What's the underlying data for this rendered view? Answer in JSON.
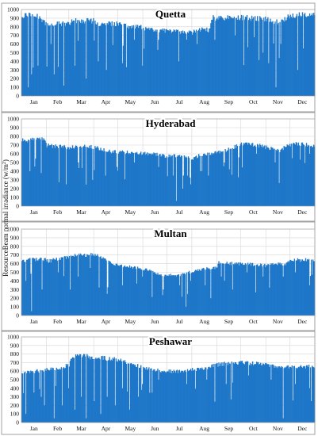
{
  "figure": {
    "ylabel": "ResourceBeam normal irradiance (w/m²)",
    "ylabel_main": "ResourceBeam normal irradiance (w/m",
    "ylabel_sup": "2",
    "ylabel_end": ")"
  },
  "chart_data": [
    {
      "type": "bar",
      "title": "Quetta",
      "categories": [
        "Jan",
        "Feb",
        "Mar",
        "Apr",
        "May",
        "Jun",
        "Jul",
        "Aug",
        "Sep",
        "Oct",
        "Nov",
        "Dec"
      ],
      "yticks": [
        0,
        100,
        200,
        300,
        400,
        500,
        600,
        700,
        800,
        900,
        1000
      ],
      "ylim": [
        0,
        1000
      ],
      "grid": true,
      "color": "#1f77c8",
      "envelope": [
        [
          0,
          960
        ],
        [
          15,
          990
        ],
        [
          28,
          880
        ],
        [
          31,
          870
        ],
        [
          59,
          860
        ],
        [
          62,
          900
        ],
        [
          90,
          900
        ],
        [
          95,
          850
        ],
        [
          120,
          870
        ],
        [
          125,
          840
        ],
        [
          150,
          820
        ],
        [
          160,
          790
        ],
        [
          181,
          780
        ],
        [
          190,
          770
        ],
        [
          212,
          760
        ],
        [
          220,
          800
        ],
        [
          233,
          790
        ],
        [
          236,
          940
        ],
        [
          243,
          930
        ],
        [
          273,
          940
        ],
        [
          290,
          930
        ],
        [
          304,
          920
        ],
        [
          320,
          880
        ],
        [
          334,
          960
        ],
        [
          349,
          980
        ],
        [
          365,
          970
        ]
      ],
      "dips": [
        [
          8,
          100
        ],
        [
          12,
          250
        ],
        [
          20,
          350
        ],
        [
          36,
          600
        ],
        [
          40,
          250
        ],
        [
          52,
          120
        ],
        [
          66,
          350
        ],
        [
          80,
          200
        ],
        [
          95,
          400
        ],
        [
          105,
          300
        ],
        [
          125,
          380
        ],
        [
          140,
          650
        ],
        [
          150,
          350
        ],
        [
          170,
          650
        ],
        [
          195,
          400
        ],
        [
          205,
          650
        ],
        [
          218,
          600
        ],
        [
          240,
          650
        ],
        [
          265,
          700
        ],
        [
          289,
          680
        ],
        [
          300,
          500
        ],
        [
          316,
          100
        ],
        [
          322,
          600
        ],
        [
          343,
          300
        ],
        [
          350,
          550
        ]
      ]
    },
    {
      "type": "bar",
      "title": "Hyderabad",
      "categories": [
        "Jan",
        "Feb",
        "Mar",
        "Apr",
        "May",
        "Jun",
        "Jul",
        "Aug",
        "Sep",
        "Oct",
        "Nov",
        "Dec"
      ],
      "yticks": [
        0,
        100,
        200,
        300,
        400,
        500,
        600,
        700,
        800,
        900,
        1000
      ],
      "ylim": [
        0,
        1000
      ],
      "grid": true,
      "color": "#1f77c8",
      "envelope": [
        [
          0,
          780
        ],
        [
          28,
          790
        ],
        [
          31,
          720
        ],
        [
          59,
          700
        ],
        [
          75,
          710
        ],
        [
          90,
          700
        ],
        [
          110,
          650
        ],
        [
          130,
          640
        ],
        [
          150,
          630
        ],
        [
          170,
          610
        ],
        [
          181,
          590
        ],
        [
          200,
          600
        ],
        [
          212,
          560
        ],
        [
          220,
          600
        ],
        [
          243,
          640
        ],
        [
          260,
          680
        ],
        [
          273,
          740
        ],
        [
          290,
          730
        ],
        [
          304,
          700
        ],
        [
          320,
          660
        ],
        [
          334,
          730
        ],
        [
          350,
          740
        ],
        [
          365,
          720
        ]
      ],
      "dips": [
        [
          10,
          400
        ],
        [
          24,
          380
        ],
        [
          55,
          250
        ],
        [
          70,
          500
        ],
        [
          88,
          300
        ],
        [
          104,
          350
        ],
        [
          118,
          450
        ],
        [
          140,
          500
        ],
        [
          170,
          450
        ],
        [
          188,
          350
        ],
        [
          192,
          60
        ],
        [
          200,
          200
        ],
        [
          206,
          350
        ],
        [
          210,
          250
        ],
        [
          222,
          400
        ],
        [
          232,
          350
        ],
        [
          252,
          500
        ],
        [
          270,
          560
        ],
        [
          292,
          600
        ],
        [
          315,
          500
        ],
        [
          336,
          550
        ],
        [
          358,
          600
        ]
      ]
    },
    {
      "type": "bar",
      "title": "Multan",
      "categories": [
        "Jan",
        "Feb",
        "Mar",
        "Apr",
        "May",
        "Jun",
        "Jul",
        "Aug",
        "Sep",
        "Oct",
        "Nov",
        "Dec"
      ],
      "yticks": [
        0,
        100,
        200,
        300,
        400,
        500,
        600,
        700,
        800,
        900,
        1000
      ],
      "ylim": [
        0,
        1000
      ],
      "grid": true,
      "color": "#1f77c8",
      "envelope": [
        [
          0,
          660
        ],
        [
          28,
          680
        ],
        [
          31,
          650
        ],
        [
          59,
          700
        ],
        [
          62,
          720
        ],
        [
          90,
          730
        ],
        [
          110,
          640
        ],
        [
          120,
          600
        ],
        [
          150,
          560
        ],
        [
          170,
          500
        ],
        [
          181,
          480
        ],
        [
          200,
          490
        ],
        [
          212,
          530
        ],
        [
          230,
          560
        ],
        [
          243,
          580
        ],
        [
          245,
          630
        ],
        [
          273,
          620
        ],
        [
          304,
          600
        ],
        [
          320,
          620
        ],
        [
          330,
          620
        ],
        [
          334,
          660
        ],
        [
          365,
          670
        ]
      ],
      "dips": [
        [
          5,
          400
        ],
        [
          12,
          50
        ],
        [
          25,
          300
        ],
        [
          45,
          500
        ],
        [
          60,
          300
        ],
        [
          70,
          450
        ],
        [
          85,
          550
        ],
        [
          106,
          250
        ],
        [
          125,
          350
        ],
        [
          150,
          450
        ],
        [
          176,
          300
        ],
        [
          196,
          350
        ],
        [
          204,
          100
        ],
        [
          210,
          400
        ],
        [
          228,
          350
        ],
        [
          248,
          450
        ],
        [
          262,
          300
        ],
        [
          280,
          500
        ],
        [
          300,
          450
        ],
        [
          325,
          450
        ],
        [
          340,
          500
        ],
        [
          358,
          350
        ]
      ]
    },
    {
      "type": "bar",
      "title": "Peshawar",
      "categories": [
        "Jan",
        "Feb",
        "Mar",
        "Apr",
        "May",
        "Jun",
        "Jul",
        "Aug",
        "Sep",
        "Oct",
        "Nov",
        "Dec"
      ],
      "yticks": [
        0,
        100,
        200,
        300,
        400,
        500,
        600,
        700,
        800,
        900,
        1000
      ],
      "ylim": [
        0,
        1000
      ],
      "grid": true,
      "color": "#1f77c8",
      "envelope": [
        [
          0,
          600
        ],
        [
          31,
          640
        ],
        [
          45,
          650
        ],
        [
          59,
          700
        ],
        [
          62,
          800
        ],
        [
          80,
          810
        ],
        [
          90,
          760
        ],
        [
          100,
          780
        ],
        [
          120,
          760
        ],
        [
          150,
          670
        ],
        [
          160,
          640
        ],
        [
          181,
          620
        ],
        [
          200,
          620
        ],
        [
          212,
          640
        ],
        [
          230,
          660
        ],
        [
          243,
          700
        ],
        [
          260,
          720
        ],
        [
          273,
          730
        ],
        [
          304,
          700
        ],
        [
          320,
          680
        ],
        [
          334,
          670
        ],
        [
          365,
          680
        ]
      ],
      "dips": [
        [
          5,
          100
        ],
        [
          15,
          350
        ],
        [
          28,
          200
        ],
        [
          40,
          50
        ],
        [
          50,
          200
        ],
        [
          58,
          400
        ],
        [
          66,
          150
        ],
        [
          74,
          300
        ],
        [
          80,
          50
        ],
        [
          90,
          250
        ],
        [
          98,
          100
        ],
        [
          106,
          300
        ],
        [
          116,
          200
        ],
        [
          125,
          400
        ],
        [
          134,
          150
        ],
        [
          150,
          450
        ],
        [
          170,
          500
        ],
        [
          205,
          450
        ],
        [
          230,
          500
        ],
        [
          254,
          450
        ],
        [
          282,
          550
        ],
        [
          310,
          500
        ],
        [
          325,
          50
        ],
        [
          340,
          450
        ],
        [
          358,
          400
        ]
      ]
    }
  ]
}
